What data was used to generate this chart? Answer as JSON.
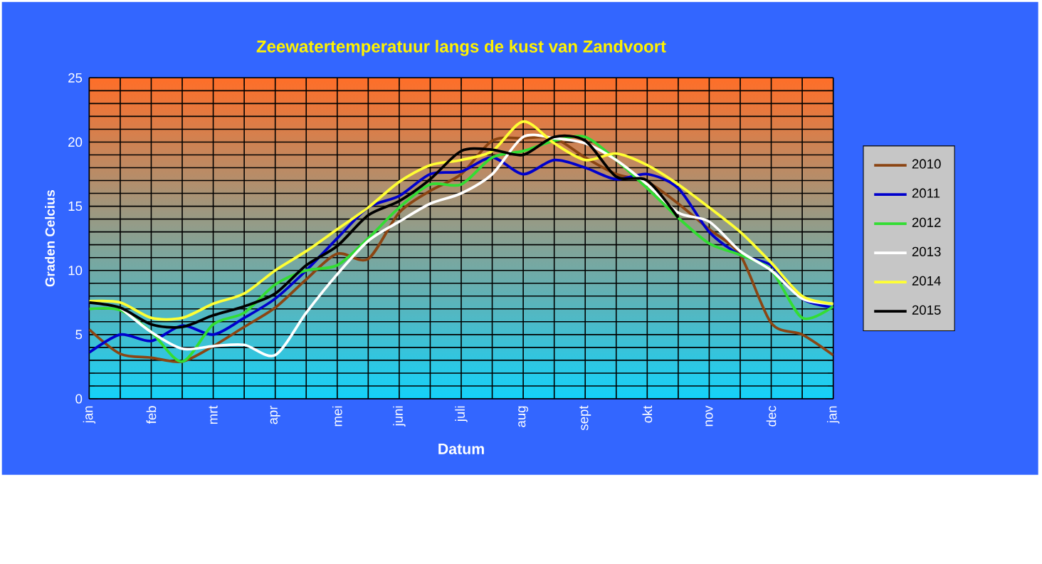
{
  "chart_data": {
    "type": "line",
    "title": "Zeewatertemperatuur langs de kust van Zandvoort",
    "xlabel": "Datum",
    "ylabel": "Graden Celcius",
    "categories": [
      "jan",
      null,
      "feb",
      null,
      "mrt",
      null,
      "apr",
      null,
      "mei",
      null,
      "juni",
      null,
      "juli",
      null,
      "aug",
      null,
      "sept",
      null,
      "okt",
      null,
      "nov",
      null,
      "dec",
      null,
      "jan"
    ],
    "ylim": [
      0,
      25
    ],
    "yticks": [
      0,
      5,
      10,
      15,
      20,
      25
    ],
    "grid": true,
    "legend": "right",
    "marker": "none",
    "line_style": "solid",
    "series": [
      {
        "name": "2010",
        "color": "#8b4513",
        "values": [
          5.4,
          3.5,
          3.2,
          2.9,
          4.1,
          5.6,
          7.1,
          9.3,
          11.3,
          10.9,
          14.5,
          16.2,
          17.5,
          20.1,
          20.3,
          20.3,
          18.8,
          17.5,
          16.9,
          15.2,
          13.2,
          11.2,
          5.9,
          5.0,
          3.4
        ]
      },
      {
        "name": "2011",
        "color": "#0000cc",
        "values": [
          3.6,
          5.0,
          4.5,
          5.7,
          5.0,
          6.3,
          7.8,
          10.0,
          12.5,
          14.9,
          15.8,
          17.5,
          17.7,
          18.8,
          17.5,
          18.6,
          18.0,
          17.1,
          17.5,
          16.4,
          13.0,
          11.2,
          10.4,
          7.8,
          7.1
        ]
      },
      {
        "name": "2012",
        "color": "#33dd33",
        "values": [
          7.0,
          6.9,
          5.2,
          2.9,
          5.8,
          6.7,
          8.9,
          10.0,
          10.4,
          12.5,
          14.9,
          16.7,
          16.7,
          18.8,
          19.3,
          20.1,
          20.4,
          18.6,
          16.4,
          14.1,
          12.1,
          11.2,
          10.0,
          6.3,
          7.2
        ]
      },
      {
        "name": "2013",
        "color": "#ffffff",
        "values": [
          null,
          7.1,
          5.2,
          3.9,
          4.1,
          4.2,
          3.4,
          6.7,
          9.7,
          12.3,
          13.8,
          15.2,
          16.0,
          17.5,
          20.4,
          20.3,
          19.9,
          18.6,
          16.7,
          14.5,
          13.8,
          11.5,
          10.0,
          7.8,
          7.4
        ]
      },
      {
        "name": "2014",
        "color": "#ffff33",
        "values": [
          7.6,
          7.5,
          6.3,
          6.3,
          7.4,
          8.2,
          10.0,
          11.5,
          13.2,
          14.9,
          16.9,
          18.2,
          18.6,
          19.3,
          21.6,
          19.9,
          18.6,
          19.1,
          18.2,
          16.7,
          14.9,
          13.0,
          10.6,
          8.0,
          7.4
        ]
      },
      {
        "name": "2015",
        "color": "#000000",
        "values": [
          7.5,
          7.1,
          5.8,
          5.6,
          6.5,
          7.2,
          8.2,
          10.4,
          11.9,
          14.3,
          15.4,
          17.1,
          19.3,
          19.4,
          19.0,
          20.4,
          20.1,
          17.3,
          17.0,
          14.1,
          null,
          null,
          null,
          null,
          null
        ]
      }
    ]
  }
}
